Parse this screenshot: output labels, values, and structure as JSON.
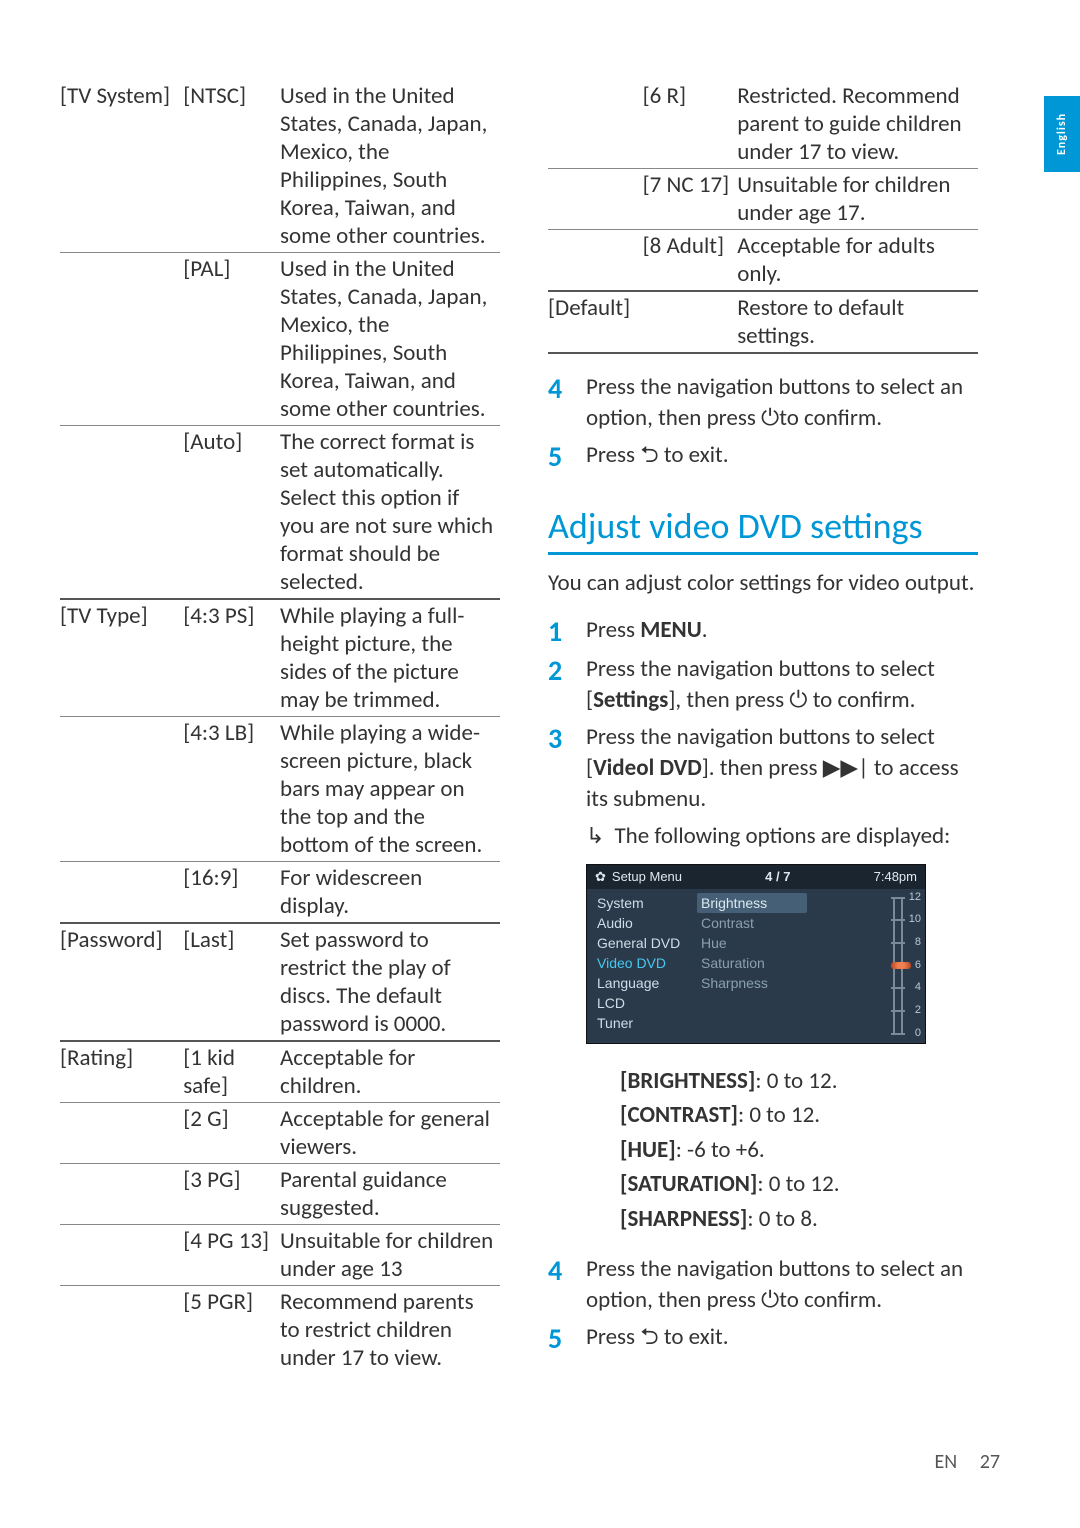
{
  "sideTab": "English",
  "footer": {
    "lang": "EN",
    "page": "27"
  },
  "leftTable": [
    {
      "c1": "[TV System]",
      "c2": "[NTSC]",
      "c3": "Used in the United States, Canada, Japan, Mexico, the Philippines, South Korea, Taiwan, and some other countries.",
      "rule": true
    },
    {
      "c1": "",
      "c2": "[PAL]",
      "c3": "Used in the United States, Canada, Japan, Mexico, the Philippines, South Korea, Taiwan, and some other countries.",
      "rule": true
    },
    {
      "c1": "",
      "c2": "[Auto]",
      "c3": "The correct format is set automatically. Select this option if you are not sure which format should be selected.",
      "rule": true,
      "thick": true
    },
    {
      "c1": "[TV Type]",
      "c2": "[4:3 PS]",
      "c3": "While playing a full-height picture, the sides of the picture may be trimmed.",
      "rule": true
    },
    {
      "c1": "",
      "c2": "[4:3 LB]",
      "c3": "While playing a wide-screen picture, black bars may appear on the top and the bottom of the screen.",
      "rule": true
    },
    {
      "c1": "",
      "c2": "[16:9]",
      "c3": "For widescreen display.",
      "rule": true,
      "thick": true
    },
    {
      "c1": "[Password]",
      "c2": "[Last]",
      "c3": "Set password to restrict the play of discs. The default password is 0000.",
      "rule": true,
      "thick": true
    },
    {
      "c1": "[Rating]",
      "c2": "[1 kid safe]",
      "c3": "Acceptable for children.",
      "rule": true
    },
    {
      "c1": "",
      "c2": "[2 G]",
      "c3": "Acceptable for general viewers.",
      "rule": true
    },
    {
      "c1": "",
      "c2": "[3 PG]",
      "c3": "Parental guidance suggested.",
      "rule": true
    },
    {
      "c1": "",
      "c2": "[4 PG 13]",
      "c3": "Unsuitable for children under age 13",
      "rule": true
    },
    {
      "c1": "",
      "c2": "[5 PGR]",
      "c3": "Recommend parents to restrict children under 17 to view."
    }
  ],
  "rightTable": [
    {
      "c1": "",
      "c2": "[6 R]",
      "c3": "Restricted. Recommend parent to guide children under 17 to view.",
      "rule": true
    },
    {
      "c1": "",
      "c2": "[7 NC 17]",
      "c3": "Unsuitable for children under age 17.",
      "rule": true
    },
    {
      "c1": "",
      "c2": "[8 Adult]",
      "c3": "Acceptable for adults only.",
      "rule": true,
      "thick": true
    },
    {
      "c1": "[Default]",
      "c2": "",
      "c3": "Restore to default settings.",
      "rule": true,
      "thick": true
    }
  ],
  "stepsTop": {
    "s4": "Press the navigation buttons to select an option, then press ⏻to confirm.",
    "s5": "Press ⮌ to exit."
  },
  "sectionTitle": "Adjust video DVD settings",
  "intro": "You can adjust color settings for video output.",
  "steps": {
    "s1_pre": "Press ",
    "s1_bold": "MENU",
    "s1_post": ".",
    "s2_pre": "Press the navigation buttons to select [",
    "s2_bold": "Settings",
    "s2_post": "], then press ⏻ to confirm.",
    "s3_pre": "Press the navigation buttons to select [",
    "s3_bold": "Videol DVD",
    "s3_post": "]. then press ▶▶| to access its submenu.",
    "s3_sub": "The following options are displayed:"
  },
  "menuShot": {
    "header": {
      "title": "Setup Menu",
      "counter": "4 / 7",
      "time": "7:48pm"
    },
    "leftItems": [
      "System",
      "Audio",
      "General DVD",
      "Video DVD",
      "Language",
      "LCD",
      "Tuner"
    ],
    "selectedIndex": 3,
    "midItems": [
      "Brightness",
      "Contrast",
      "Hue",
      "Saturation",
      "Sharpness"
    ],
    "highlightIndex": 0,
    "scaleNums": [
      "12",
      "10",
      "8",
      "6",
      "4",
      "2",
      "0"
    ],
    "indicatorRow": 3
  },
  "ranges": [
    {
      "label": "[BRIGHTNESS]",
      "text": ": 0 to 12."
    },
    {
      "label": "[CONTRAST]",
      "text": ": 0 to 12."
    },
    {
      "label": "[HUE]",
      "text": ": -6 to +6."
    },
    {
      "label": "[SATURATION]",
      "text": ": 0 to 12."
    },
    {
      "label": "[SHARPNESS]",
      "text": ": 0 to 8."
    }
  ],
  "stepsBottom": {
    "s4": "Press the navigation buttons to select an option, then press ⏻to confirm.",
    "s5": "Press ⮌ to exit."
  }
}
